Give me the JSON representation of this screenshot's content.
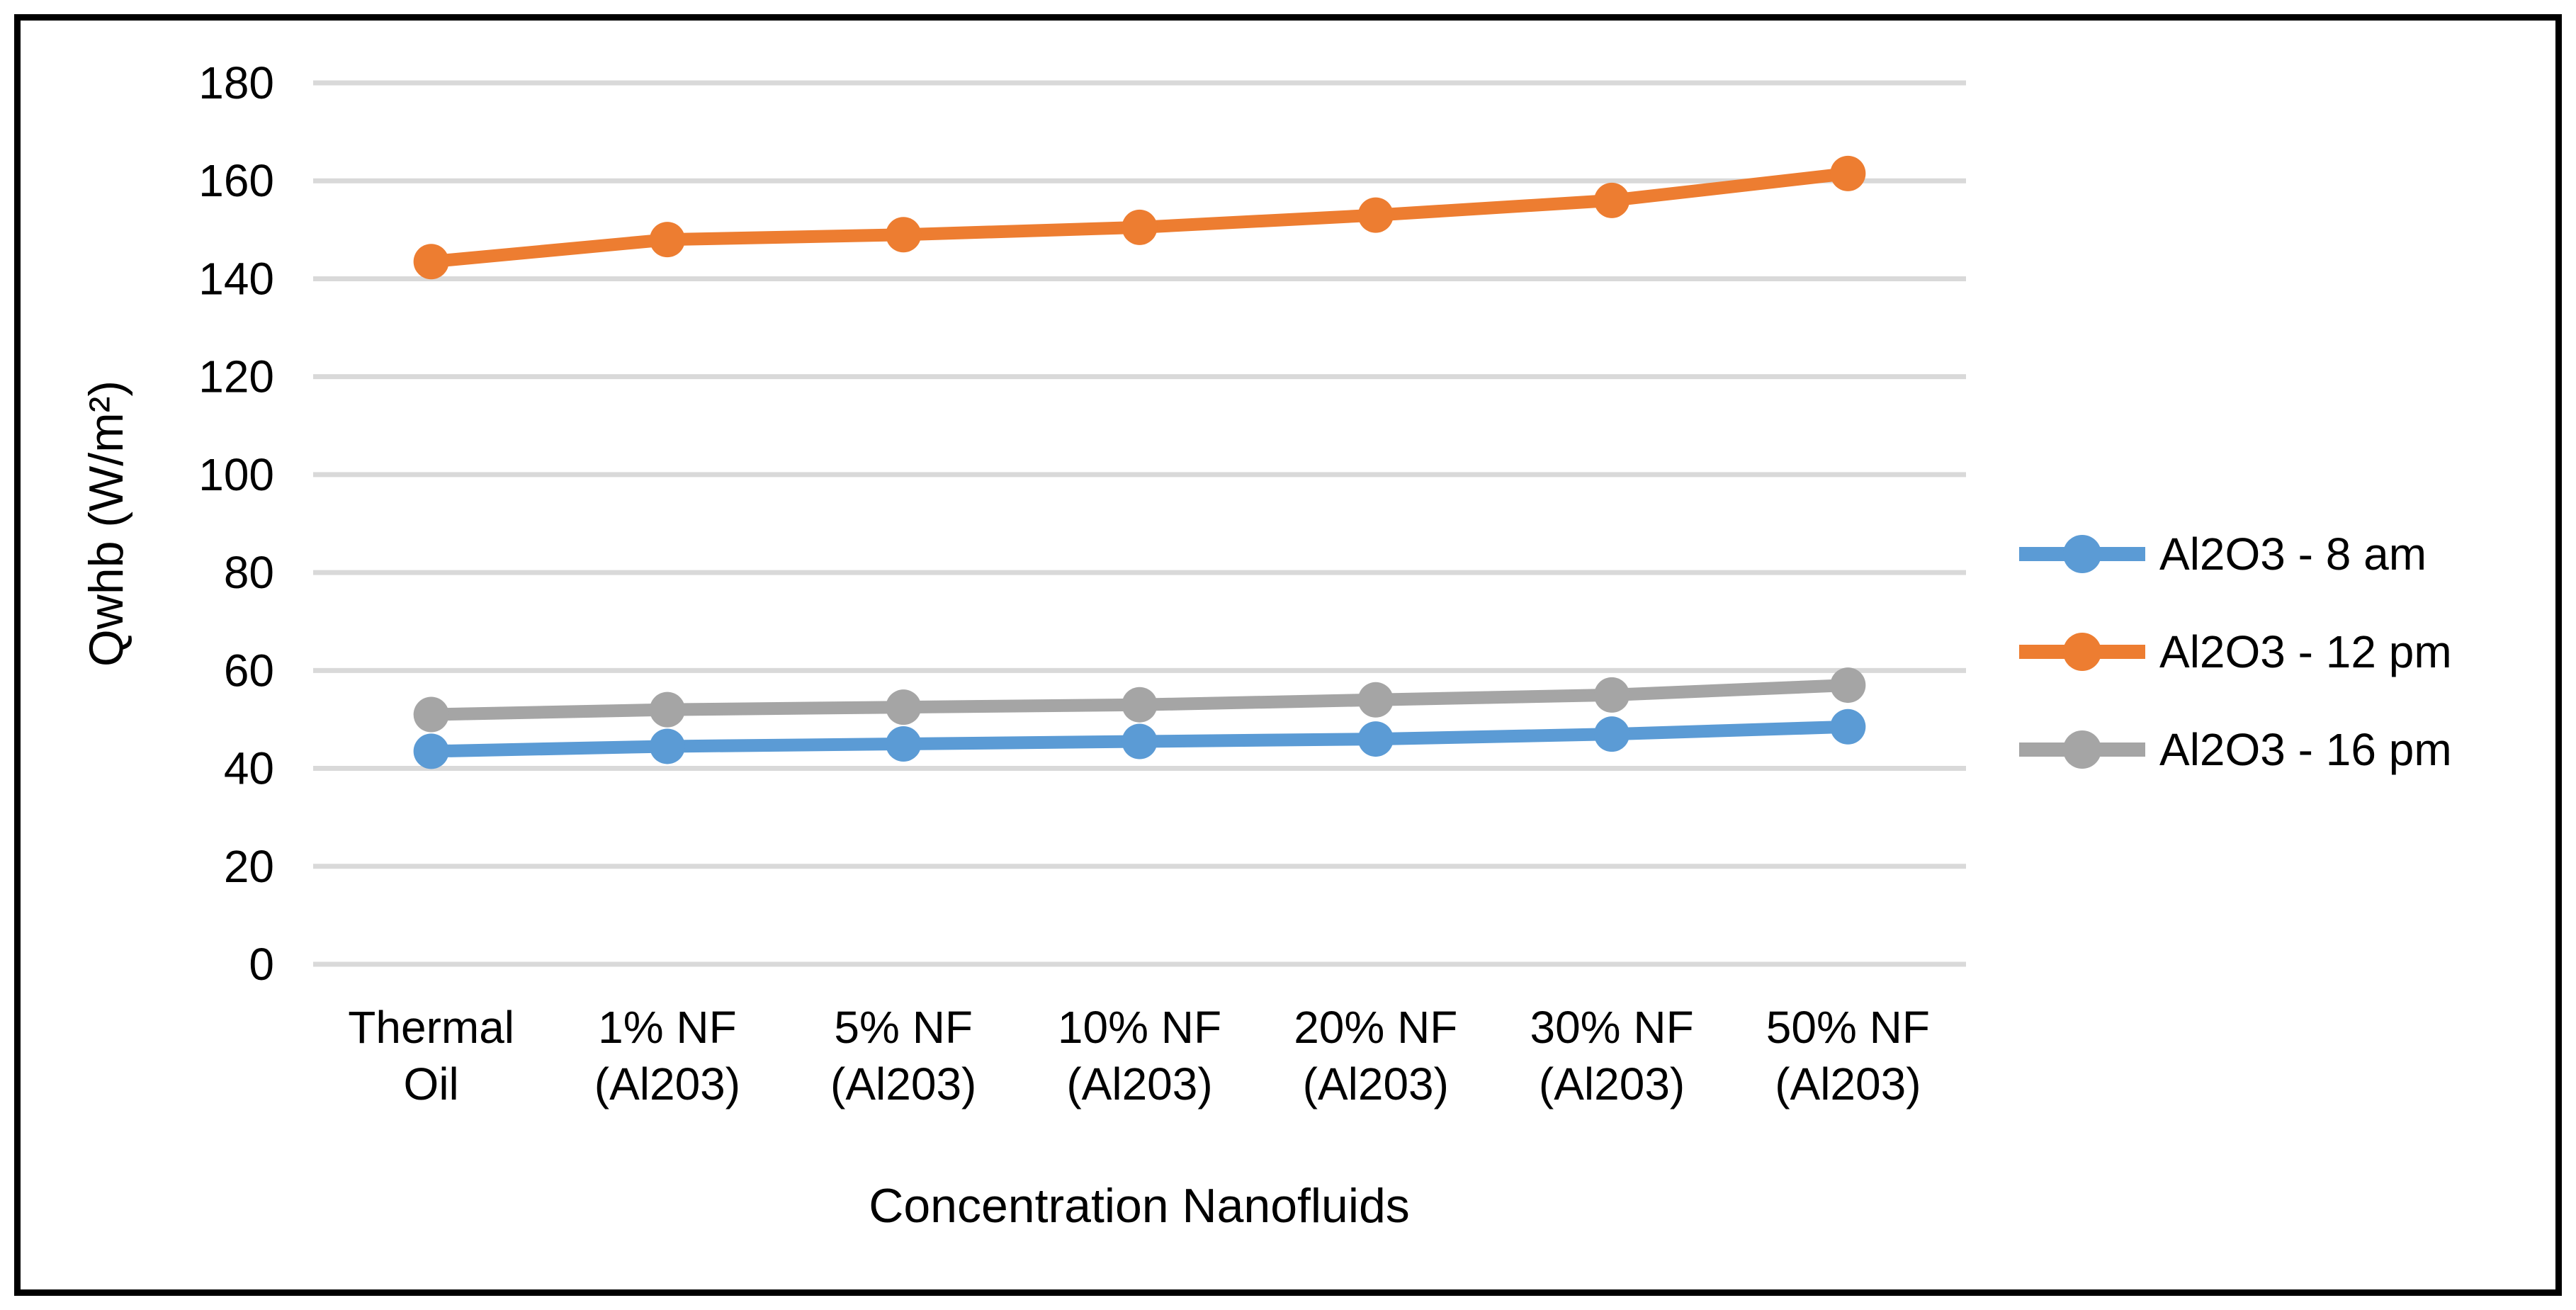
{
  "chart_data": {
    "type": "line",
    "title": "",
    "xlabel": "Concentration Nanofluids",
    "ylabel": "Qwhb (W/m²)",
    "ylim": [
      0,
      180
    ],
    "yticks": [
      0,
      20,
      40,
      60,
      80,
      100,
      120,
      140,
      160,
      180
    ],
    "grid": true,
    "gridline_color": "#D9D9D9",
    "frame_color": "#000000",
    "text_color": "#000000",
    "legend_position": "right",
    "categories": [
      [
        "Thermal",
        "Oil"
      ],
      [
        "1% NF",
        "(Al203)"
      ],
      [
        "5% NF",
        "(Al203)"
      ],
      [
        "10% NF",
        "(Al203)"
      ],
      [
        "20% NF",
        "(Al203)"
      ],
      [
        "30% NF",
        "(Al203)"
      ],
      [
        "50% NF",
        "(Al203)"
      ]
    ],
    "series": [
      {
        "name": "Al2O3 - 8 am",
        "color": "#5B9BD5",
        "values": [
          43.5,
          44.5,
          45,
          45.5,
          46,
          47,
          48.5
        ]
      },
      {
        "name": "Al2O3 - 12 pm",
        "color": "#ED7D31",
        "values": [
          143.5,
          148,
          149,
          150.5,
          153,
          156,
          161.5
        ]
      },
      {
        "name": "Al2O3 - 16 pm",
        "color": "#A5A5A5",
        "values": [
          51,
          52,
          52.5,
          53,
          54,
          55,
          57
        ]
      }
    ]
  }
}
